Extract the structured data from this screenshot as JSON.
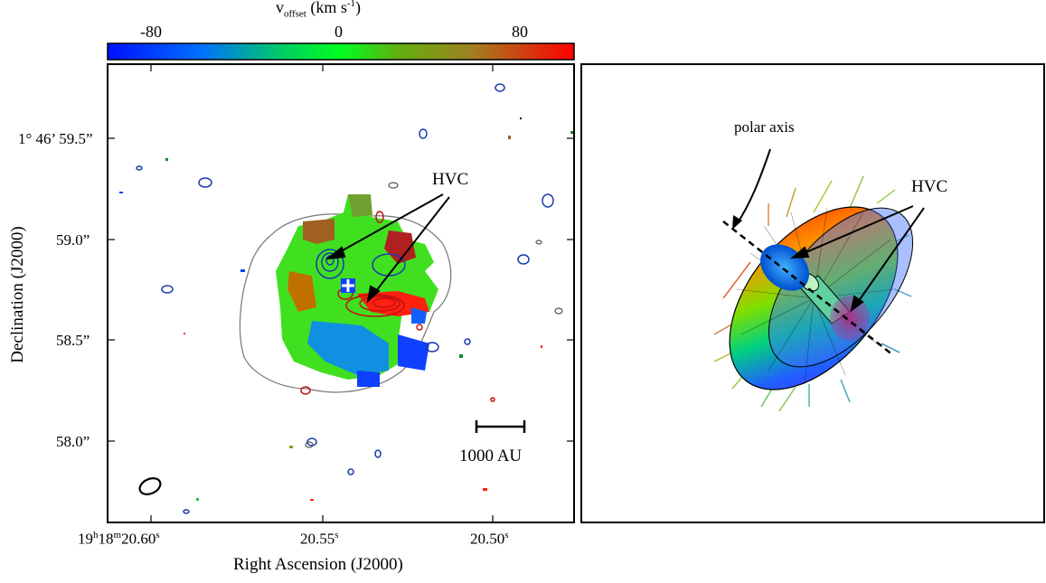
{
  "colorbar": {
    "label_main": "v",
    "label_sub": "offset",
    "label_rest": " (km s",
    "label_sup": "-1",
    "label_close": ")",
    "ticks": [
      "-80",
      "0",
      "80"
    ],
    "colors": [
      "#0010ff",
      "#00ff20",
      "#ff0000"
    ]
  },
  "left_panel": {
    "hvc_label": "HVC",
    "scalebar_label": "1000 AU",
    "yaxis_label": "Declination (J2000)",
    "xaxis_label": "Right Ascension (J2000)",
    "yticks": [
      "1° 46’ 59.5”",
      "59.0”",
      "58.5”",
      "58.0”"
    ],
    "xticks": {
      "t0_h": "19",
      "t0_hs": "h",
      "t0_m": "18",
      "t0_ms": "m",
      "t0_s": "20.60",
      "t0_ss": "s",
      "t1": "20.55",
      "t1_s": "s",
      "t2": "20.50",
      "t2_s": "s"
    }
  },
  "right_panel": {
    "polar_axis_label": "polar axis",
    "hvc_label": "HVC"
  }
}
